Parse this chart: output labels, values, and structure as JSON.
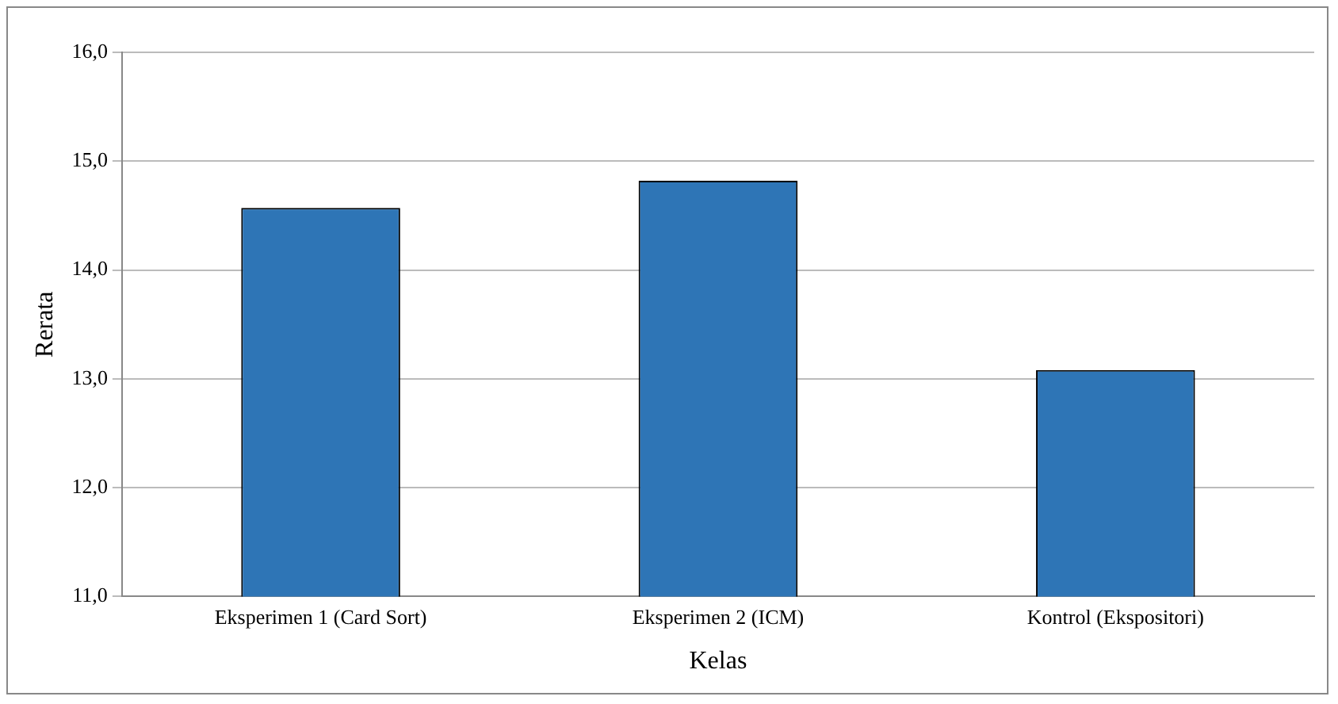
{
  "chart_data": {
    "type": "bar",
    "xlabel": "Kelas",
    "ylabel": "Rerata",
    "categories": [
      "Eksperimen 1 (Card Sort)",
      "Eksperimen 2 (ICM)",
      "Kontrol (Ekspositori)"
    ],
    "values": [
      14.57,
      14.82,
      13.08
    ],
    "color": "#2e75b6",
    "ylim": [
      11,
      16
    ],
    "yticks": [
      {
        "value": 11,
        "label": "11,0"
      },
      {
        "value": 12,
        "label": "12,0"
      },
      {
        "value": 13,
        "label": "13,0"
      },
      {
        "value": 14,
        "label": "14,0"
      },
      {
        "value": 15,
        "label": "15,0"
      },
      {
        "value": 16,
        "label": "16,0"
      }
    ],
    "grid": "y"
  }
}
